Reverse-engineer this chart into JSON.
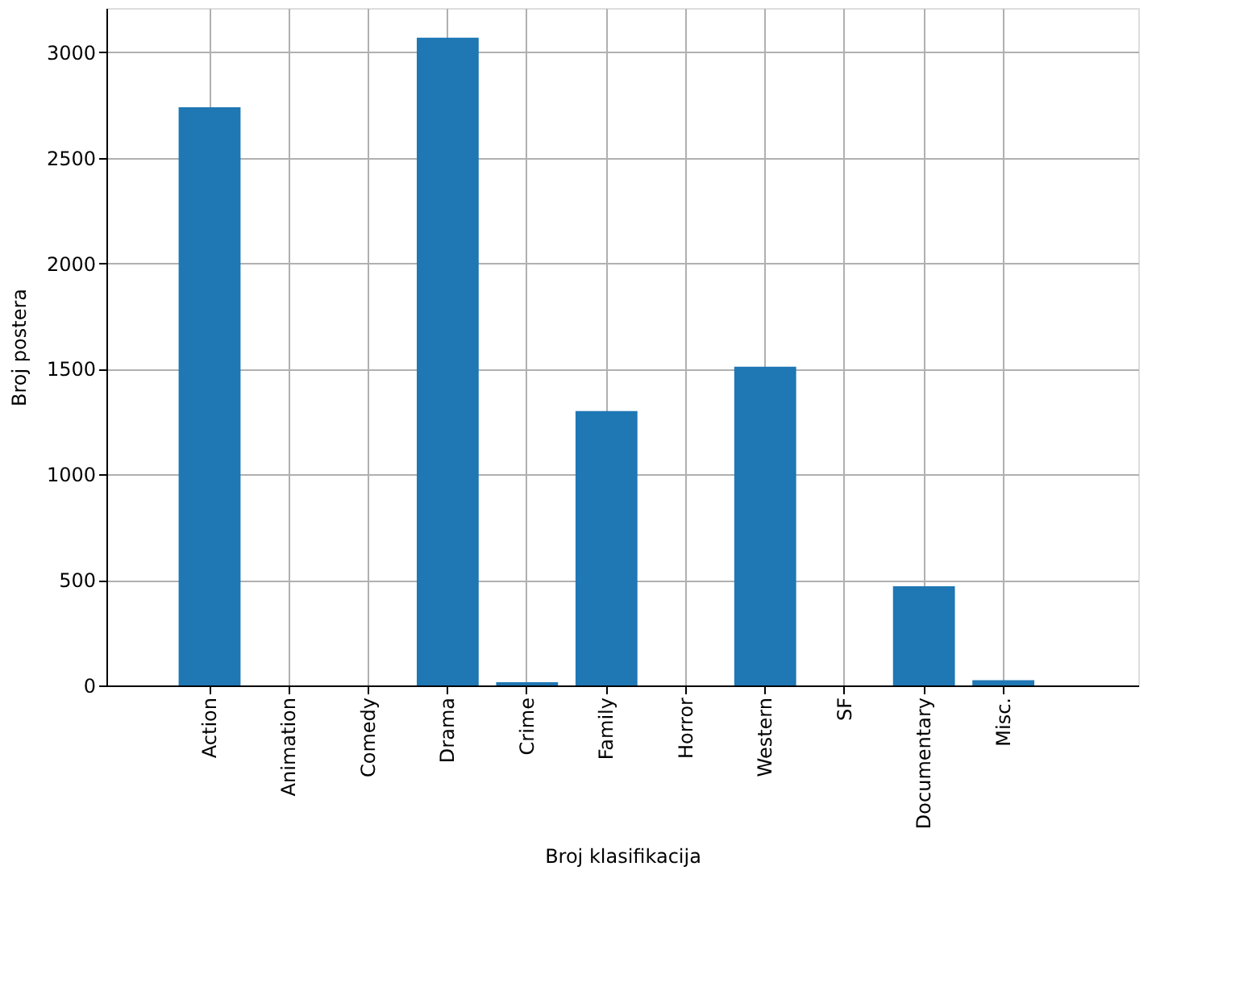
{
  "chart_data": {
    "type": "bar",
    "xlabel": "Broj klasifikacija",
    "ylabel": "Broj postera",
    "categories": [
      "Action",
      "Animation",
      "Comedy",
      "Drama",
      "Crime",
      "Family",
      "Horror",
      "Western",
      "SF",
      "Documentary",
      "Misc."
    ],
    "values": [
      2740,
      0,
      0,
      3070,
      15,
      1300,
      0,
      1510,
      0,
      470,
      25
    ],
    "color": "#1f77b4",
    "ylim": [
      0,
      3210
    ],
    "yticks": [
      0,
      500,
      1000,
      1500,
      2000,
      2500,
      3000
    ],
    "grid": true
  }
}
